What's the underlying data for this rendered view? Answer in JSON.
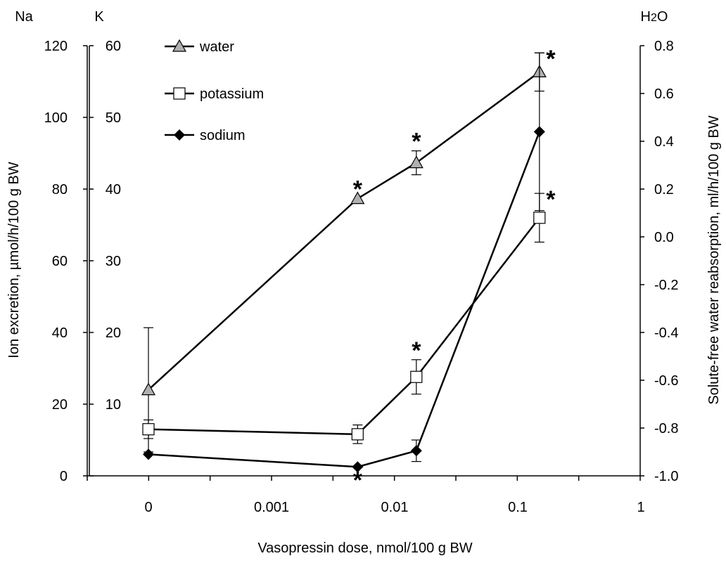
{
  "chart_data": {
    "type": "line",
    "xlabel": "Vasopressin dose, nmol/100 g BW",
    "ylabel_left": "Ion excretion, µmol/h/100 g BW",
    "ylabel_right": "Solute-free water reabsorption, ml/h/100 g BW",
    "left_axis_na": {
      "title": "Na",
      "ticks": [
        "0",
        "20",
        "40",
        "60",
        "80",
        "100",
        "120"
      ],
      "range": [
        0,
        120
      ]
    },
    "left_axis_k": {
      "title": "K",
      "ticks": [
        "10",
        "20",
        "30",
        "40",
        "50",
        "60"
      ],
      "range": [
        0,
        60
      ]
    },
    "right_axis": {
      "title": "H2O",
      "ticks": [
        "-1.0",
        "-0.8",
        "-0.6",
        "-0.4",
        "-0.2",
        "0.0",
        "0.2",
        "0.4",
        "0.6",
        "0.8"
      ],
      "range": [
        -1.0,
        0.8
      ]
    },
    "x_ticks": [
      "0",
      "0.001",
      "0.01",
      "0.1",
      "1"
    ],
    "grid": false,
    "legend_position": "top-left",
    "series": [
      {
        "name": "water",
        "axis": "right",
        "marker": "triangle",
        "marker_color": "#b0b0b0",
        "x": [
          "0",
          "0.005",
          "0.015",
          "0.15"
        ],
        "y": [
          -0.64,
          0.16,
          0.31,
          0.69
        ],
        "err": [
          0.26,
          null,
          0.05,
          0.08
        ],
        "significant": [
          false,
          true,
          true,
          true
        ]
      },
      {
        "name": "potassium",
        "axis": "K",
        "marker": "square",
        "marker_color": "#ffffff",
        "x": [
          "0",
          "0.005",
          "0.015",
          "0.15"
        ],
        "y": [
          6.5,
          5.8,
          13.8,
          36.0
        ],
        "err": [
          1.3,
          1.3,
          2.4,
          3.4
        ],
        "significant": [
          false,
          false,
          true,
          true
        ]
      },
      {
        "name": "sodium",
        "axis": "Na",
        "marker": "diamond",
        "marker_color": "#000000",
        "x": [
          "0",
          "0.005",
          "0.015",
          "0.15"
        ],
        "y": [
          6.0,
          2.5,
          7.0,
          96.0
        ],
        "err": [
          null,
          null,
          3.0,
          22.0
        ],
        "significant": [
          false,
          true,
          false,
          true
        ]
      }
    ]
  }
}
